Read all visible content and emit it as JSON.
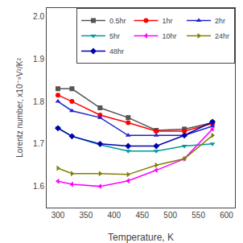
{
  "chart_data": {
    "type": "line",
    "xlabel": "Temperature, K",
    "ylabel": "Lorentz number, x10⁻⁸V²/K²",
    "x": [
      300,
      325,
      375,
      425,
      475,
      525,
      575
    ],
    "xlim": [
      280,
      615
    ],
    "ylim": [
      1.55,
      2.02
    ],
    "xticks": [
      300,
      350,
      400,
      450,
      500,
      550,
      600
    ],
    "yticks": [
      1.6,
      1.7,
      1.8,
      1.9,
      {
        "value": 2.0,
        "label": "2.0"
      }
    ],
    "grid": false,
    "legend": "upper right",
    "series": [
      {
        "name": "0.5hr",
        "color": "#555555",
        "marker": "square",
        "values": [
          1.83,
          1.83,
          1.785,
          1.762,
          1.732,
          1.735,
          1.75
        ]
      },
      {
        "name": "1hr",
        "color": "#ff0000",
        "marker": "circle",
        "values": [
          1.815,
          1.8,
          1.768,
          1.75,
          1.73,
          1.73,
          1.748
        ]
      },
      {
        "name": "2hr",
        "color": "#2222cc",
        "marker": "triangle-up",
        "values": [
          1.8,
          1.778,
          1.762,
          1.72,
          1.72,
          1.72,
          1.742
        ]
      },
      {
        "name": "5hr",
        "color": "#009999",
        "marker": "triangle-down",
        "values": [
          1.738,
          1.718,
          1.698,
          1.683,
          1.683,
          1.695,
          1.7
        ]
      },
      {
        "name": "10hr",
        "color": "#ff00ff",
        "marker": "triangle-left",
        "values": [
          1.612,
          1.605,
          1.6,
          1.613,
          1.638,
          1.665,
          1.735
        ]
      },
      {
        "name": "24hr",
        "color": "#808000",
        "marker": "triangle-right",
        "values": [
          1.643,
          1.63,
          1.63,
          1.628,
          1.65,
          1.665,
          1.72
        ]
      },
      {
        "name": "48hr",
        "color": "#0000aa",
        "marker": "diamond",
        "values": [
          1.737,
          1.718,
          1.7,
          1.695,
          1.695,
          1.72,
          1.752
        ]
      }
    ]
  }
}
